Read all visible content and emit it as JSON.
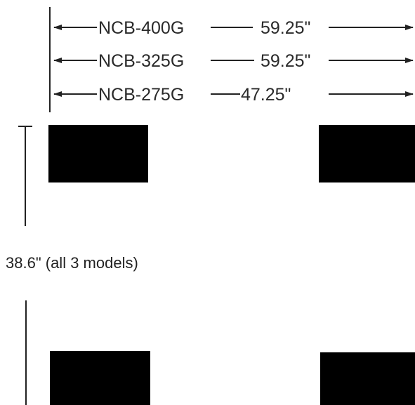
{
  "dimensions": [
    {
      "model": "NCB-400G",
      "width": "59.25\""
    },
    {
      "model": "NCB-325G",
      "width": "59.25\""
    },
    {
      "model": "NCB-275G",
      "width": "47.25\""
    }
  ],
  "depth_label": "38.6\" (all 3 models)",
  "colors": {
    "line": "#222222",
    "feet": "#000000",
    "background": "#ffffff"
  }
}
